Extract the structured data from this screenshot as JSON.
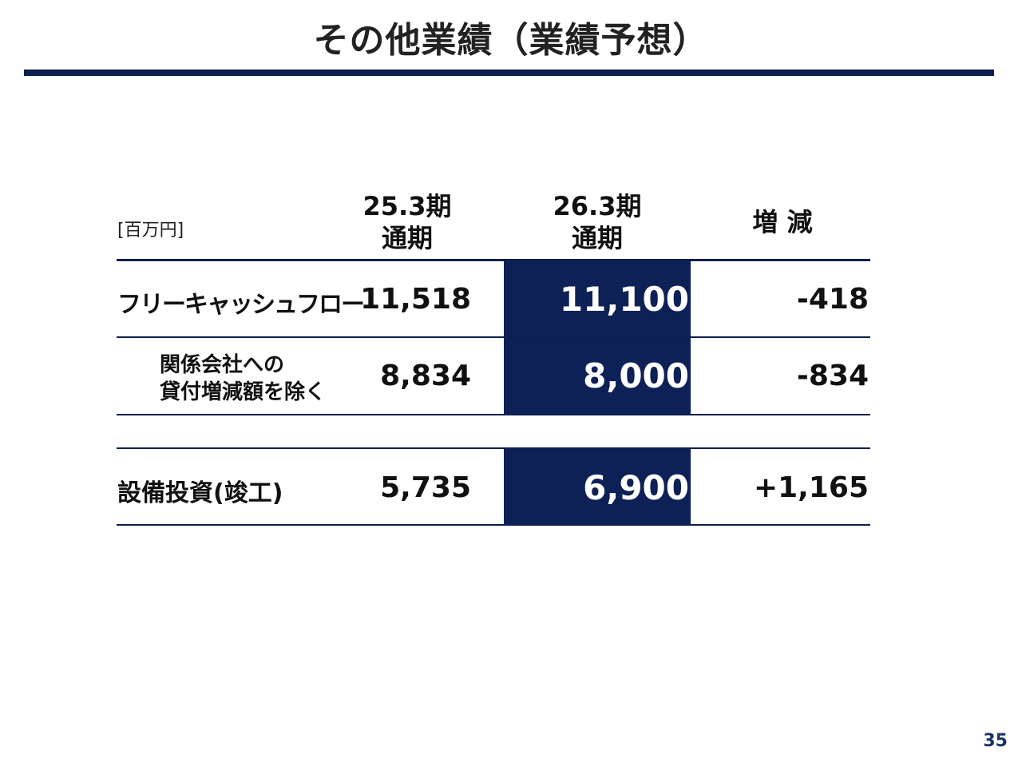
{
  "slide": {
    "title": "その他業績（業績予想）",
    "unit": "[百万円]",
    "page_number": "35"
  },
  "table": {
    "columns": [
      {
        "line1": "25.3期",
        "line2": "通期"
      },
      {
        "line1": "26.3期",
        "line2": "通期"
      },
      {
        "line1": "増 減",
        "line2": ""
      }
    ],
    "rows": [
      {
        "label": "フリーキャッシュフロー",
        "values": [
          "11,518",
          "11,100",
          "-418"
        ]
      },
      {
        "label_line1": "関係会社への",
        "label_line2": "貸付増減額を除く",
        "values": [
          "8,834",
          "8,000",
          "-834"
        ]
      },
      {
        "label": "設備投資(竣工)",
        "values": [
          "5,735",
          "6,900",
          "+1,165"
        ]
      }
    ]
  },
  "colors": {
    "accent_navy": "#0e2157",
    "rule_navy": "#0d1f4f",
    "page_number": "#1a3566"
  }
}
